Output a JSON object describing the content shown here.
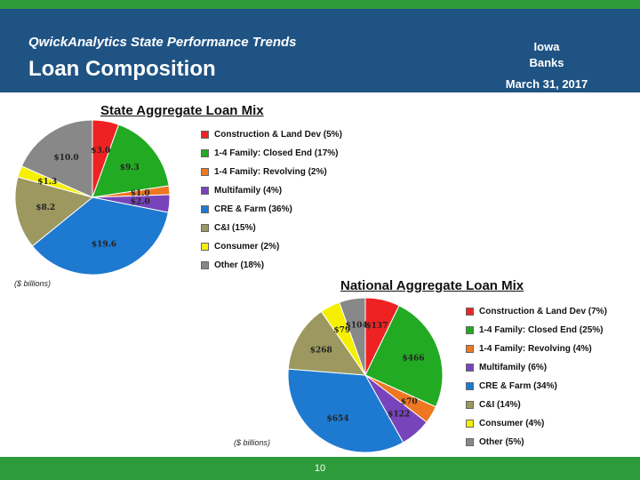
{
  "header": {
    "subtitle": "QwickAnalytics State Performance Trends",
    "title": "Loan Composition",
    "state": "Iowa",
    "entity": "Banks",
    "date": "March 31, 2017"
  },
  "footer": {
    "page_number": "10"
  },
  "chart_data": [
    {
      "type": "pie",
      "title": "State Aggregate Loan Mix",
      "unit_note": "($ billions)",
      "colors": [
        "#ee2222",
        "#22aa22",
        "#ee7722",
        "#7744bb",
        "#1e7ad0",
        "#9c9860",
        "#f4f000",
        "#888888"
      ],
      "categories": [
        "Construction & Land Dev (5%)",
        "1-4 Family: Closed End (17%)",
        "1-4 Family: Revolving (2%)",
        "Multifamily (4%)",
        "CRE & Farm (36%)",
        "C&I (15%)",
        "Consumer (2%)",
        "Other (18%)"
      ],
      "values": [
        3.0,
        9.3,
        1.0,
        2.0,
        19.6,
        8.2,
        1.3,
        10.0
      ],
      "data_labels": [
        "$3.0",
        "$9.3",
        "$1.0",
        "$2.0",
        "$19.6",
        "$8.2",
        "$1.3",
        "$10.0"
      ]
    },
    {
      "type": "pie",
      "title": "National Aggregate Loan Mix",
      "unit_note": "($ billions)",
      "colors": [
        "#ee2222",
        "#22aa22",
        "#ee7722",
        "#7744bb",
        "#1e7ad0",
        "#9c9860",
        "#f4f000",
        "#888888"
      ],
      "categories": [
        "Construction & Land Dev (7%)",
        "1-4 Family: Closed End (25%)",
        "1-4 Family: Revolving (4%)",
        "Multifamily (6%)",
        "CRE & Farm (34%)",
        "C&I (14%)",
        "Consumer (4%)",
        "Other (5%)"
      ],
      "values": [
        137,
        466,
        70,
        122,
        654,
        268,
        79,
        104
      ],
      "data_labels": [
        "$137",
        "$466",
        "$70",
        "$122",
        "$654",
        "$268",
        "$79",
        "$104"
      ]
    }
  ]
}
